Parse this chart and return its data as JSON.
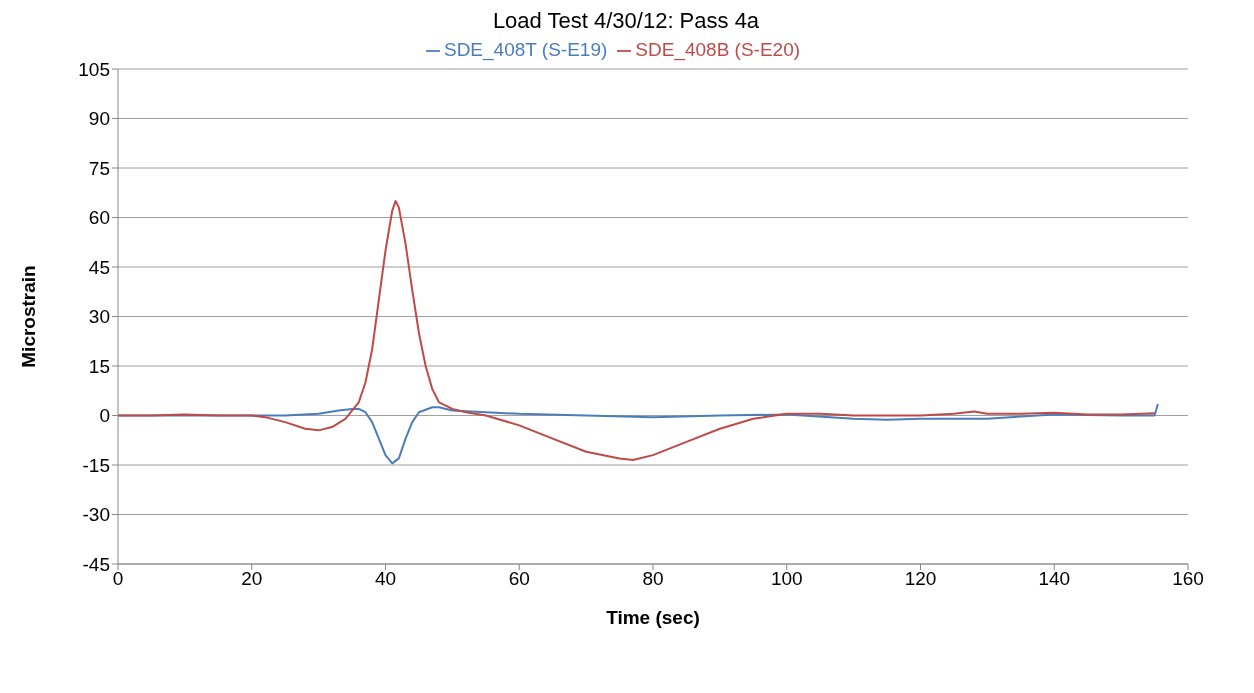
{
  "chart_data": {
    "type": "line",
    "title": "Load Test 4/30/12: Pass 4a",
    "xlabel": "Time (sec)",
    "ylabel": "Microstrain",
    "xlim": [
      0,
      160
    ],
    "xticks": [
      0,
      20,
      40,
      60,
      80,
      100,
      120,
      140,
      160
    ],
    "ylim": [
      -45,
      105
    ],
    "yticks": [
      -45,
      -30,
      -15,
      0,
      15,
      30,
      45,
      60,
      75,
      90,
      105
    ],
    "grid": "y",
    "legend": "top",
    "marker": "none",
    "line_style": "solid",
    "series": [
      {
        "name": "SDE_408T (S-E19)",
        "color": "#4a7ebb",
        "x": [
          0,
          10,
          20,
          25,
          30,
          33,
          35,
          36,
          37,
          38,
          39,
          40,
          41,
          42,
          43,
          44,
          45,
          47,
          48,
          50,
          55,
          60,
          70,
          80,
          90,
          100,
          110,
          115,
          120,
          130,
          135,
          140,
          150,
          155,
          155.5
        ],
        "values": [
          0,
          0,
          0,
          0,
          0.5,
          1.5,
          2,
          2,
          1,
          -2,
          -7,
          -12,
          -14.5,
          -13,
          -7,
          -2,
          1,
          2.5,
          2.5,
          1.5,
          1,
          0.5,
          0,
          -0.5,
          0,
          0.3,
          -1,
          -1.3,
          -1,
          -1,
          -0.3,
          0.3,
          0,
          0,
          3.5
        ]
      },
      {
        "name": "SDE_408B (S-E20)",
        "color": "#be4b48",
        "x": [
          0,
          5,
          10,
          15,
          20,
          22,
          25,
          28,
          30,
          32,
          34,
          36,
          37,
          38,
          39,
          40,
          41,
          41.5,
          42,
          43,
          44,
          45,
          46,
          47,
          48,
          50,
          52,
          55,
          60,
          65,
          70,
          75,
          77,
          80,
          85,
          90,
          95,
          100,
          105,
          110,
          115,
          120,
          125,
          128,
          130,
          135,
          140,
          145,
          150,
          155
        ],
        "values": [
          0,
          0,
          0.3,
          0,
          0,
          -0.5,
          -2,
          -4,
          -4.5,
          -3.5,
          -1,
          4,
          10,
          20,
          35,
          50,
          62,
          65,
          63,
          52,
          38,
          25,
          15,
          8,
          4,
          2,
          1,
          0,
          -3,
          -7,
          -11,
          -13,
          -13.5,
          -12,
          -8,
          -4,
          -1,
          0.5,
          0.5,
          0,
          0,
          0,
          0.5,
          1.2,
          0.5,
          0.5,
          0.8,
          0.3,
          0.3,
          0.7
        ]
      }
    ]
  }
}
